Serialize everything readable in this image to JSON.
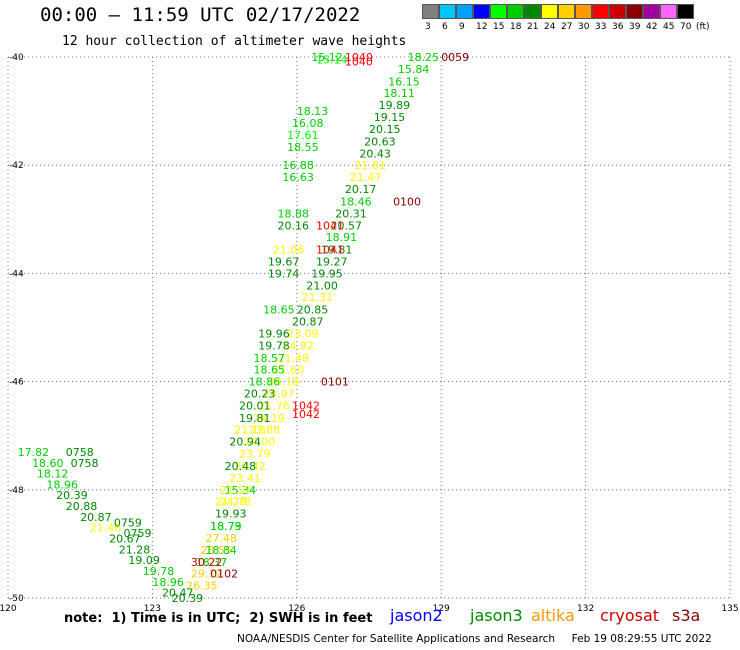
{
  "header": {
    "title": "00:00 – 11:59 UTC 02/17/2022",
    "subtitle": "12 hour collection of altimeter wave heights"
  },
  "scale": {
    "unit": "(ft)",
    "bins": [
      {
        "label": "3",
        "color": "#808080"
      },
      {
        "label": "6",
        "color": "#00c8ff"
      },
      {
        "label": "9",
        "color": "#00a0ff"
      },
      {
        "label": "12",
        "color": "#0000ff"
      },
      {
        "label": "15",
        "color": "#00ff00"
      },
      {
        "label": "18",
        "color": "#00cc00"
      },
      {
        "label": "21",
        "color": "#008800"
      },
      {
        "label": "24",
        "color": "#ffff00"
      },
      {
        "label": "27",
        "color": "#ffd000"
      },
      {
        "label": "30",
        "color": "#ff9900"
      },
      {
        "label": "33",
        "color": "#ff0000"
      },
      {
        "label": "36",
        "color": "#cc0000"
      },
      {
        "label": "39",
        "color": "#880000"
      },
      {
        "label": "42",
        "color": "#a000a0"
      },
      {
        "label": "45",
        "color": "#ff66ff"
      },
      {
        "label": "70",
        "color": "#000000"
      }
    ]
  },
  "note": "note:  1) Time is in UTC;  2) SWH is in feet",
  "legend": [
    {
      "name": "jason2",
      "color": "#0000ff"
    },
    {
      "name": "jason3",
      "color": "#008800"
    },
    {
      "name": "altika",
      "color": "#ff9900"
    },
    {
      "name": "cryosat",
      "color": "#cc0000"
    },
    {
      "name": "s3a",
      "color": "#880000"
    }
  ],
  "footer": "NOAA/NESDIS Center for Satellite Applications and Research     Feb 19 08:29:55 UTC 2022",
  "chart_data": {
    "type": "scatter",
    "xlim": [
      120,
      135
    ],
    "ylim": [
      -50,
      -40
    ],
    "x_ticks": [
      "120",
      "123",
      "126",
      "129",
      "132",
      "135"
    ],
    "y_ticks": [
      "-40",
      "-42",
      "-44",
      "-46",
      "-48",
      "-50"
    ],
    "grid": true,
    "points": [
      {
        "x": 126.3,
        "y": -40.0,
        "label": "15.12",
        "color": "#00cc00"
      },
      {
        "x": 126.4,
        "y": -40.05,
        "label": "15.14",
        "color": "#00ff00"
      },
      {
        "x": 127.0,
        "y": -40.0,
        "label": "1040",
        "color": "#ff0000"
      },
      {
        "x": 127.0,
        "y": -40.08,
        "label": "1040",
        "color": "#ff0000"
      },
      {
        "x": 128.3,
        "y": -40.0,
        "label": "18.25",
        "color": "#00cc00"
      },
      {
        "x": 129.0,
        "y": -40.0,
        "label": "0059",
        "color": "#880000"
      },
      {
        "x": 128.1,
        "y": -40.22,
        "label": "15.84",
        "color": "#00cc00"
      },
      {
        "x": 127.9,
        "y": -40.45,
        "label": "16.15",
        "color": "#00cc00"
      },
      {
        "x": 127.8,
        "y": -40.67,
        "label": "18.11",
        "color": "#00cc00"
      },
      {
        "x": 127.7,
        "y": -40.89,
        "label": "19.89",
        "color": "#008800"
      },
      {
        "x": 127.6,
        "y": -41.11,
        "label": "19.15",
        "color": "#008800"
      },
      {
        "x": 127.5,
        "y": -41.33,
        "label": "20.15",
        "color": "#008800"
      },
      {
        "x": 127.4,
        "y": -41.56,
        "label": "20.63",
        "color": "#008800"
      },
      {
        "x": 127.3,
        "y": -41.78,
        "label": "20.43",
        "color": "#008800"
      },
      {
        "x": 127.2,
        "y": -42.0,
        "label": "21.81",
        "color": "#ffff00"
      },
      {
        "x": 127.1,
        "y": -42.22,
        "label": "21.47",
        "color": "#ffff00"
      },
      {
        "x": 127.0,
        "y": -42.44,
        "label": "20.17",
        "color": "#008800"
      },
      {
        "x": 126.9,
        "y": -42.67,
        "label": "18.46",
        "color": "#00cc00"
      },
      {
        "x": 128.0,
        "y": -42.67,
        "label": "0100",
        "color": "#880000"
      },
      {
        "x": 126.8,
        "y": -42.89,
        "label": "20.31",
        "color": "#008800"
      },
      {
        "x": 126.7,
        "y": -43.11,
        "label": "20.57",
        "color": "#008800"
      },
      {
        "x": 126.6,
        "y": -43.33,
        "label": "18.91",
        "color": "#00cc00"
      },
      {
        "x": 126.5,
        "y": -43.56,
        "label": "19.81",
        "color": "#008800"
      },
      {
        "x": 126.4,
        "y": -43.78,
        "label": "19.27",
        "color": "#008800"
      },
      {
        "x": 126.3,
        "y": -44.0,
        "label": "19.95",
        "color": "#008800"
      },
      {
        "x": 126.2,
        "y": -44.22,
        "label": "21.00",
        "color": "#008800"
      },
      {
        "x": 126.1,
        "y": -44.44,
        "label": "21.31",
        "color": "#ffff00"
      },
      {
        "x": 126.0,
        "y": -44.67,
        "label": "20.85",
        "color": "#008800"
      },
      {
        "x": 125.9,
        "y": -44.89,
        "label": "20.87",
        "color": "#008800"
      },
      {
        "x": 125.8,
        "y": -45.11,
        "label": "23.09",
        "color": "#ffff00"
      },
      {
        "x": 125.7,
        "y": -45.33,
        "label": "24.92",
        "color": "#ffff00"
      },
      {
        "x": 125.6,
        "y": -45.56,
        "label": "21.48",
        "color": "#ffff00"
      },
      {
        "x": 125.5,
        "y": -45.78,
        "label": "21.60",
        "color": "#ffff00"
      },
      {
        "x": 125.4,
        "y": -46.0,
        "label": "24.18",
        "color": "#ffff00"
      },
      {
        "x": 126.5,
        "y": -46.0,
        "label": "0101",
        "color": "#880000"
      },
      {
        "x": 125.3,
        "y": -46.22,
        "label": "24.97",
        "color": "#ffff00"
      },
      {
        "x": 125.2,
        "y": -46.44,
        "label": "21.76",
        "color": "#ffff00"
      },
      {
        "x": 125.9,
        "y": -46.44,
        "label": "1042",
        "color": "#ff0000"
      },
      {
        "x": 125.9,
        "y": -46.6,
        "label": "1042",
        "color": "#ff0000"
      },
      {
        "x": 125.1,
        "y": -46.67,
        "label": "24.19",
        "color": "#ffff00"
      },
      {
        "x": 125.0,
        "y": -46.89,
        "label": "23.88",
        "color": "#ffff00"
      },
      {
        "x": 124.9,
        "y": -47.11,
        "label": "24.00",
        "color": "#ffff00"
      },
      {
        "x": 124.8,
        "y": -47.33,
        "label": "23.79",
        "color": "#ffff00"
      },
      {
        "x": 124.7,
        "y": -47.56,
        "label": "20.42",
        "color": "#ffff00"
      },
      {
        "x": 124.6,
        "y": -47.78,
        "label": "23.41",
        "color": "#ffff00"
      },
      {
        "x": 124.5,
        "y": -48.0,
        "label": "15.34",
        "color": "#00cc00"
      },
      {
        "x": 124.4,
        "y": -48.22,
        "label": "24.78",
        "color": "#ffff00"
      },
      {
        "x": 124.3,
        "y": -48.44,
        "label": "19.93",
        "color": "#008800"
      },
      {
        "x": 124.2,
        "y": -48.67,
        "label": "18.73",
        "color": "#00cc00"
      },
      {
        "x": 124.1,
        "y": -48.89,
        "label": "27.48",
        "color": "#ffd000"
      },
      {
        "x": 124.0,
        "y": -49.11,
        "label": "28.55",
        "color": "#ffd000"
      },
      {
        "x": 123.9,
        "y": -49.33,
        "label": "18.37",
        "color": "#00cc00"
      },
      {
        "x": 123.8,
        "y": -49.55,
        "label": "29.12",
        "color": "#ffd000"
      },
      {
        "x": 123.7,
        "y": -49.77,
        "label": "26.35",
        "color": "#ffd000"
      },
      {
        "x": 123.8,
        "y": -49.33,
        "label": "30.22",
        "color": "#cc0000"
      },
      {
        "x": 124.2,
        "y": -49.55,
        "label": "0102",
        "color": "#880000"
      },
      {
        "x": 126.0,
        "y": -41.0,
        "label": "18.13",
        "color": "#00cc00"
      },
      {
        "x": 125.9,
        "y": -41.22,
        "label": "16.08",
        "color": "#00cc00"
      },
      {
        "x": 125.8,
        "y": -41.44,
        "label": "17.61",
        "color": "#00ff00"
      },
      {
        "x": 125.8,
        "y": -41.66,
        "label": "18.55",
        "color": "#00cc00"
      },
      {
        "x": 125.7,
        "y": -42.0,
        "label": "16.88",
        "color": "#00cc00"
      },
      {
        "x": 125.7,
        "y": -42.22,
        "label": "16.63",
        "color": "#00cc00"
      },
      {
        "x": 125.6,
        "y": -42.89,
        "label": "18.88",
        "color": "#00cc00"
      },
      {
        "x": 125.6,
        "y": -43.11,
        "label": "20.16",
        "color": "#008800"
      },
      {
        "x": 126.4,
        "y": -43.11,
        "label": "1041",
        "color": "#ff0000"
      },
      {
        "x": 126.4,
        "y": -43.56,
        "label": "1041",
        "color": "#ff0000"
      },
      {
        "x": 125.5,
        "y": -43.56,
        "label": "21.06",
        "color": "#ffff00"
      },
      {
        "x": 125.4,
        "y": -43.78,
        "label": "19.67",
        "color": "#008800"
      },
      {
        "x": 125.4,
        "y": -44.0,
        "label": "19.74",
        "color": "#008800"
      },
      {
        "x": 125.3,
        "y": -44.67,
        "label": "18.65",
        "color": "#00cc00"
      },
      {
        "x": 125.2,
        "y": -45.11,
        "label": "19.96",
        "color": "#008800"
      },
      {
        "x": 125.2,
        "y": -45.33,
        "label": "19.78",
        "color": "#008800"
      },
      {
        "x": 125.1,
        "y": -45.56,
        "label": "18.57",
        "color": "#00cc00"
      },
      {
        "x": 125.1,
        "y": -45.78,
        "label": "18.65",
        "color": "#00cc00"
      },
      {
        "x": 125.0,
        "y": -46.0,
        "label": "18.86",
        "color": "#00cc00"
      },
      {
        "x": 124.9,
        "y": -46.22,
        "label": "20.23",
        "color": "#008800"
      },
      {
        "x": 124.8,
        "y": -46.44,
        "label": "20.01",
        "color": "#008800"
      },
      {
        "x": 124.8,
        "y": -46.67,
        "label": "19.81",
        "color": "#008800"
      },
      {
        "x": 124.7,
        "y": -46.89,
        "label": "21.18",
        "color": "#ffff00"
      },
      {
        "x": 124.6,
        "y": -47.11,
        "label": "20.94",
        "color": "#008800"
      },
      {
        "x": 124.5,
        "y": -47.56,
        "label": "20.48",
        "color": "#008800"
      },
      {
        "x": 124.4,
        "y": -48.0,
        "label": "21.57",
        "color": "#ffff00"
      },
      {
        "x": 124.3,
        "y": -48.22,
        "label": "21.28",
        "color": "#ffff00"
      },
      {
        "x": 124.2,
        "y": -48.67,
        "label": "18.79",
        "color": "#00cc00"
      },
      {
        "x": 124.1,
        "y": -49.11,
        "label": "18.84",
        "color": "#00cc00"
      },
      {
        "x": 120.2,
        "y": -47.3,
        "label": "17.82",
        "color": "#00cc00"
      },
      {
        "x": 120.5,
        "y": -47.5,
        "label": "18.60",
        "color": "#00cc00"
      },
      {
        "x": 121.2,
        "y": -47.3,
        "label": "0758",
        "color": "#008800"
      },
      {
        "x": 121.3,
        "y": -47.5,
        "label": "0758",
        "color": "#008800"
      },
      {
        "x": 120.6,
        "y": -47.7,
        "label": "18.12",
        "color": "#00cc00"
      },
      {
        "x": 120.8,
        "y": -47.9,
        "label": "18.96",
        "color": "#00cc00"
      },
      {
        "x": 121.0,
        "y": -48.1,
        "label": "20.39",
        "color": "#008800"
      },
      {
        "x": 121.2,
        "y": -48.3,
        "label": "20.88",
        "color": "#008800"
      },
      {
        "x": 121.5,
        "y": -48.5,
        "label": "20.87",
        "color": "#008800"
      },
      {
        "x": 121.7,
        "y": -48.7,
        "label": "21.46",
        "color": "#ffff00"
      },
      {
        "x": 122.1,
        "y": -48.9,
        "label": "20.67",
        "color": "#008800"
      },
      {
        "x": 122.3,
        "y": -49.1,
        "label": "21.28",
        "color": "#008800"
      },
      {
        "x": 122.5,
        "y": -49.3,
        "label": "19.09",
        "color": "#008800"
      },
      {
        "x": 122.8,
        "y": -49.5,
        "label": "19.78",
        "color": "#00cc00"
      },
      {
        "x": 123.0,
        "y": -49.7,
        "label": "18.96",
        "color": "#00cc00"
      },
      {
        "x": 123.2,
        "y": -49.9,
        "label": "20.47",
        "color": "#008800"
      },
      {
        "x": 123.4,
        "y": -50.0,
        "label": "20.39",
        "color": "#008800"
      },
      {
        "x": 122.2,
        "y": -48.6,
        "label": "0759",
        "color": "#008800"
      },
      {
        "x": 122.4,
        "y": -48.8,
        "label": "0759",
        "color": "#008800"
      }
    ]
  }
}
